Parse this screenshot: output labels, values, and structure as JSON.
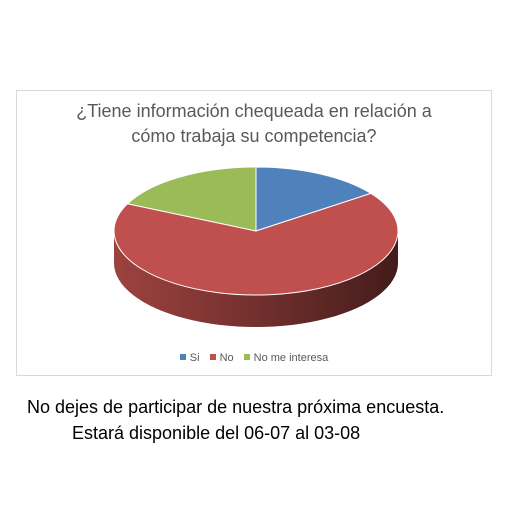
{
  "chart_data": {
    "type": "pie",
    "title_lines": [
      "¿Tiene información chequeada en relación a",
      "cómo trabaja su competencia?"
    ],
    "categories": [
      "Si",
      "No",
      "No me interesa"
    ],
    "values": [
      15,
      67,
      18
    ],
    "colors": [
      "#4f81bd",
      "#c0504d",
      "#9bbb59"
    ],
    "style": "3d",
    "legend_position": "bottom"
  },
  "footer": {
    "line1": "No dejes de participar de nuestra próxima encuesta.",
    "line2": "Estará disponible del 06-07 al 03-08"
  }
}
